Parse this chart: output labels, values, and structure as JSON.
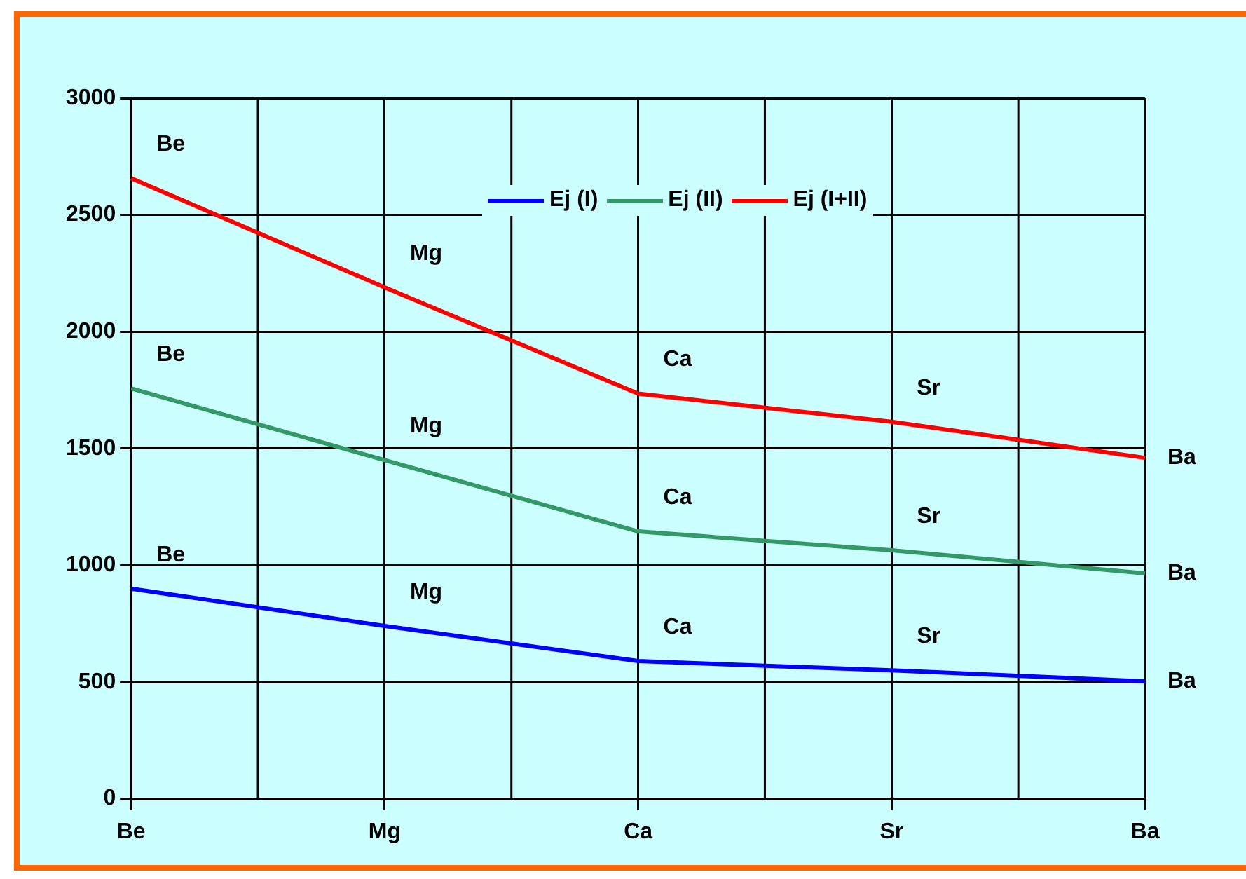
{
  "chart_data": {
    "type": "line",
    "categories": [
      "Be",
      "Mg",
      "Ca",
      "Sr",
      "Ba"
    ],
    "series": [
      {
        "name": "Ej (I)",
        "color": "#0000ff",
        "values": [
          900,
          740,
          590,
          550,
          503
        ]
      },
      {
        "name": "Ej (II)",
        "color": "#339966",
        "values": [
          1757,
          1450,
          1145,
          1064,
          965
        ]
      },
      {
        "name": "Ej (I+II)",
        "color": "#ff0000",
        "values": [
          2657,
          2190,
          1735,
          1614,
          1460
        ]
      }
    ],
    "ylim": [
      0,
      3000
    ],
    "yticks": [
      0,
      500,
      1000,
      1500,
      2000,
      2500,
      3000
    ],
    "grid": true,
    "legend": "top",
    "marker": "none",
    "annotations": [
      {
        "text": "Be",
        "x": "Be",
        "y": 900
      },
      {
        "text": "Mg",
        "x": "Mg",
        "y": 740
      },
      {
        "text": "Ca",
        "x": "Ca",
        "y": 590
      },
      {
        "text": "Sr",
        "x": "Sr",
        "y": 550
      },
      {
        "text": "Ba",
        "x": "Ba",
        "y": 503
      },
      {
        "text": "Be",
        "x": "Be",
        "y": 1757
      },
      {
        "text": "Mg",
        "x": "Mg",
        "y": 1450
      },
      {
        "text": "Ca",
        "x": "Ca",
        "y": 1145
      },
      {
        "text": "Sr",
        "x": "Sr",
        "y": 1064
      },
      {
        "text": "Ba",
        "x": "Ba",
        "y": 965
      },
      {
        "text": "Be",
        "x": "Be",
        "y": 2657
      },
      {
        "text": "Mg",
        "x": "Mg",
        "y": 2190
      },
      {
        "text": "Ca",
        "x": "Ca",
        "y": 1735
      },
      {
        "text": "Sr",
        "x": "Sr",
        "y": 1614
      },
      {
        "text": "Ba",
        "x": "Ba",
        "y": 1460
      }
    ]
  }
}
